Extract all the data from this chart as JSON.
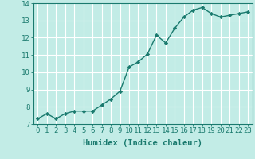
{
  "x": [
    0,
    1,
    2,
    3,
    4,
    5,
    6,
    7,
    8,
    9,
    10,
    11,
    12,
    13,
    14,
    15,
    16,
    17,
    18,
    19,
    20,
    21,
    22,
    23
  ],
  "y": [
    7.3,
    7.6,
    7.3,
    7.6,
    7.75,
    7.75,
    7.75,
    8.1,
    8.45,
    8.9,
    10.3,
    10.6,
    11.05,
    12.15,
    11.7,
    12.55,
    13.2,
    13.6,
    13.75,
    13.4,
    13.2,
    13.3,
    13.4,
    13.5
  ],
  "line_color": "#1a7a6e",
  "marker": "D",
  "marker_size": 2.2,
  "bg_color": "#c2ece6",
  "grid_color": "#ffffff",
  "xlabel": "Humidex (Indice chaleur)",
  "ylim": [
    7,
    14
  ],
  "xlim": [
    -0.5,
    23.5
  ],
  "yticks": [
    7,
    8,
    9,
    10,
    11,
    12,
    13,
    14
  ],
  "xticks": [
    0,
    1,
    2,
    3,
    4,
    5,
    6,
    7,
    8,
    9,
    10,
    11,
    12,
    13,
    14,
    15,
    16,
    17,
    18,
    19,
    20,
    21,
    22,
    23
  ],
  "xlabel_fontsize": 7.5,
  "tick_fontsize": 6.5,
  "line_width": 1.0,
  "font_family": "monospace"
}
